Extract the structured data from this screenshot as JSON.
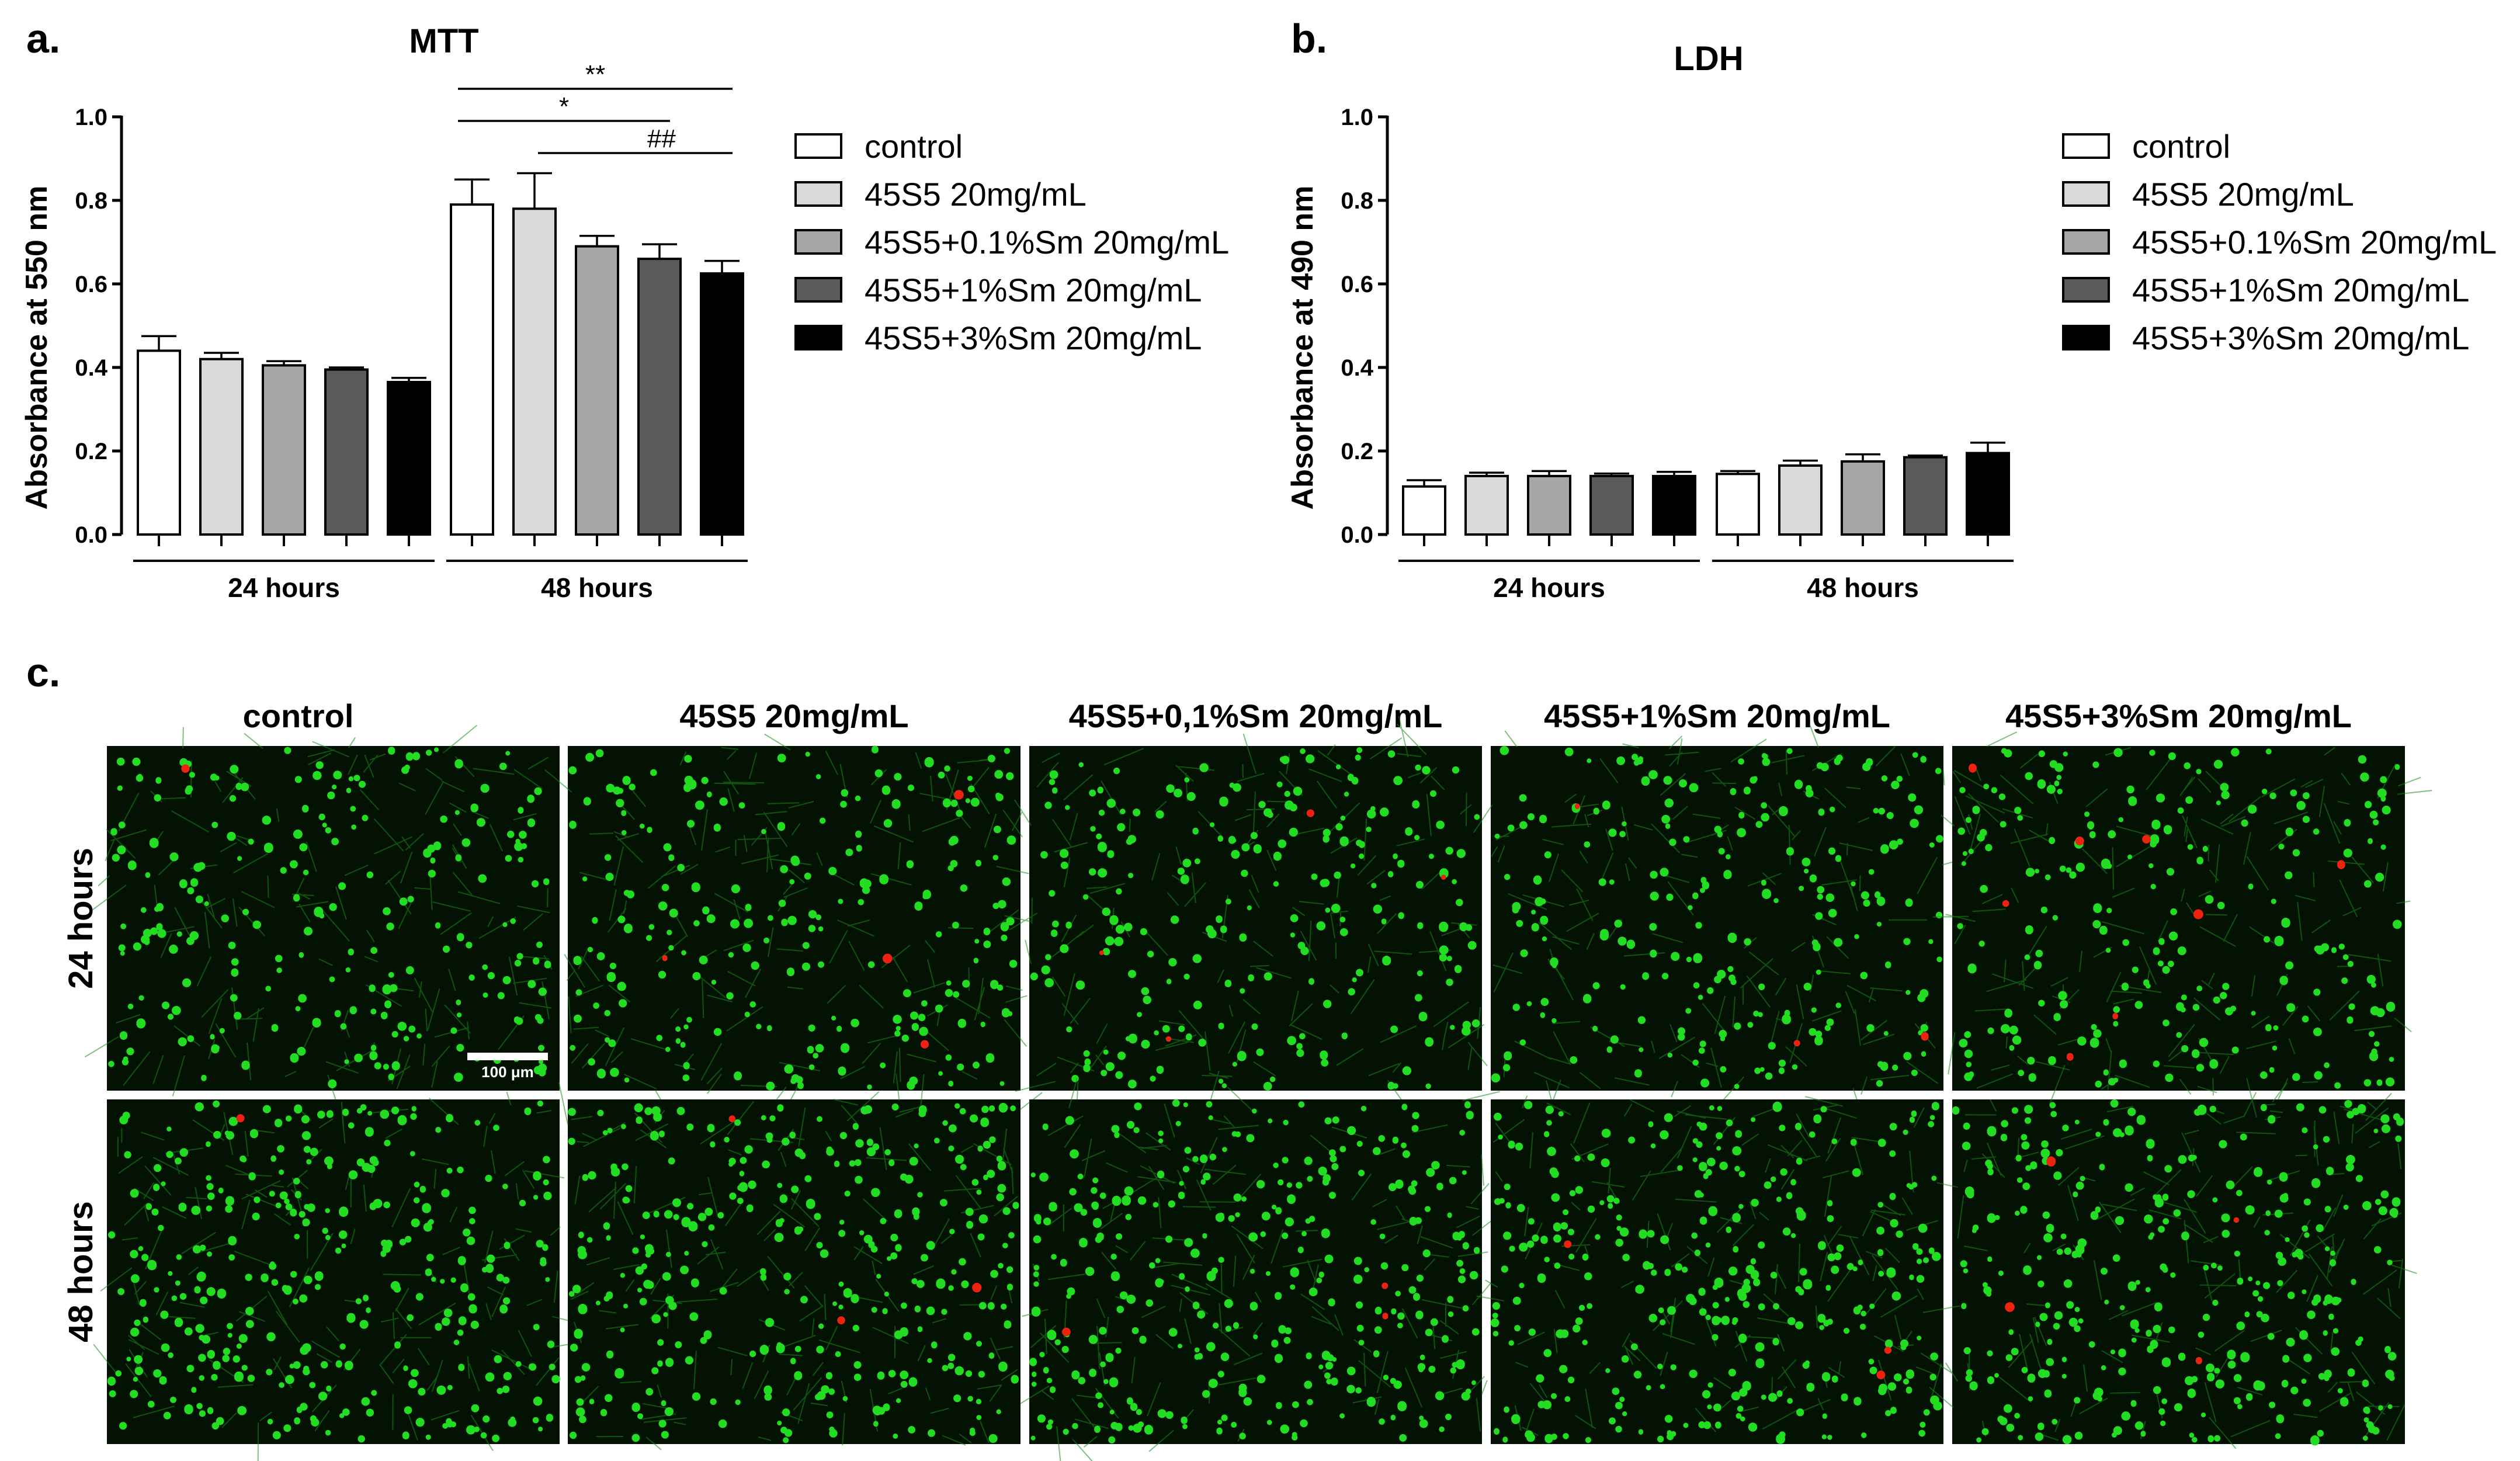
{
  "panel_labels": {
    "a": "a.",
    "b": "b.",
    "c": "c."
  },
  "legend": [
    {
      "label": "control",
      "color": "#ffffff"
    },
    {
      "label": "45S5 20mg/mL",
      "color": "#d9d9d9"
    },
    {
      "label": "45S5+0.1%Sm 20mg/mL",
      "color": "#a6a6a9"
    },
    {
      "label": "45S5+1%Sm 20mg/mL",
      "color": "#5a5a5a"
    },
    {
      "label": "45S5+3%Sm 20mg/mL",
      "color": "#000000"
    }
  ],
  "chart_data": [
    {
      "type": "bar",
      "title": "MTT",
      "ylabel": "Absorbance at 550 nm",
      "ylim": [
        0,
        1.0
      ],
      "yticks": [
        "0.0",
        "0.2",
        "0.4",
        "0.6",
        "0.8",
        "1.0"
      ],
      "groups": [
        "24 hours",
        "48 hours"
      ],
      "series": [
        {
          "name": "control",
          "values": [
            0.44,
            0.79
          ],
          "errors": [
            0.035,
            0.06
          ]
        },
        {
          "name": "45S5 20mg/mL",
          "values": [
            0.42,
            0.78
          ],
          "errors": [
            0.015,
            0.085
          ]
        },
        {
          "name": "45S5+0.1%Sm 20mg/mL",
          "values": [
            0.405,
            0.69
          ],
          "errors": [
            0.01,
            0.025
          ]
        },
        {
          "name": "45S5+1%Sm 20mg/mL",
          "values": [
            0.395,
            0.66
          ],
          "errors": [
            0.005,
            0.035
          ]
        },
        {
          "name": "45S5+3%Sm 20mg/mL",
          "values": [
            0.365,
            0.625
          ],
          "errors": [
            0.01,
            0.03
          ]
        }
      ],
      "annotations": [
        {
          "label": "**",
          "from": "control",
          "to": "45S5+3%Sm 20mg/mL",
          "group": "48 hours"
        },
        {
          "label": "*",
          "from": "control",
          "to": "45S5+1%Sm 20mg/mL",
          "group": "48 hours"
        },
        {
          "label": "##",
          "from": "45S5 20mg/mL",
          "to": "45S5+3%Sm 20mg/mL",
          "group": "48 hours"
        }
      ],
      "legend_position": "right"
    },
    {
      "type": "bar",
      "title": "LDH",
      "ylabel": "Absorbance at 490 nm",
      "ylim": [
        0,
        1.0
      ],
      "yticks": [
        "0.0",
        "0.2",
        "0.4",
        "0.6",
        "0.8",
        "1.0"
      ],
      "groups": [
        "24 hours",
        "48 hours"
      ],
      "series": [
        {
          "name": "control",
          "values": [
            0.115,
            0.145
          ],
          "errors": [
            0.015,
            0.007
          ]
        },
        {
          "name": "45S5 20mg/mL",
          "values": [
            0.14,
            0.165
          ],
          "errors": [
            0.008,
            0.012
          ]
        },
        {
          "name": "45S5+0.1%Sm 20mg/mL",
          "values": [
            0.14,
            0.175
          ],
          "errors": [
            0.012,
            0.017
          ]
        },
        {
          "name": "45S5+1%Sm 20mg/mL",
          "values": [
            0.14,
            0.185
          ],
          "errors": [
            0.006,
            0.004
          ]
        },
        {
          "name": "45S5+3%Sm 20mg/mL",
          "values": [
            0.14,
            0.195
          ],
          "errors": [
            0.01,
            0.025
          ]
        }
      ],
      "legend_position": "right"
    }
  ],
  "micrographs": {
    "columns": [
      "control",
      "45S5 20mg/mL",
      "45S5+0,1%Sm 20mg/mL",
      "45S5+1%Sm 20mg/mL",
      "45S5+3%Sm 20mg/mL"
    ],
    "rows": [
      "24 hours",
      "48 hours"
    ],
    "scale_bar": "100 μm",
    "colors": {
      "background": "#031203",
      "live": "#22dd22",
      "dead": "#ee2211"
    }
  }
}
